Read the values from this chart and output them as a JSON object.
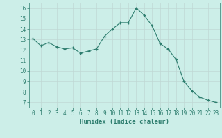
{
  "x": [
    0,
    1,
    2,
    3,
    4,
    5,
    6,
    7,
    8,
    9,
    10,
    11,
    12,
    13,
    14,
    15,
    16,
    17,
    18,
    19,
    20,
    21,
    22,
    23
  ],
  "y": [
    13.1,
    12.4,
    12.7,
    12.3,
    12.1,
    12.2,
    11.7,
    11.9,
    12.1,
    13.3,
    14.0,
    14.6,
    14.6,
    16.0,
    15.3,
    14.3,
    12.6,
    12.1,
    11.1,
    9.0,
    8.1,
    7.5,
    7.2,
    7.0
  ],
  "xlabel": "Humidex (Indice chaleur)",
  "ylim": [
    6.5,
    16.5
  ],
  "xlim": [
    -0.5,
    23.5
  ],
  "yticks": [
    7,
    8,
    9,
    10,
    11,
    12,
    13,
    14,
    15,
    16
  ],
  "xticks": [
    0,
    1,
    2,
    3,
    4,
    5,
    6,
    7,
    8,
    9,
    10,
    11,
    12,
    13,
    14,
    15,
    16,
    17,
    18,
    19,
    20,
    21,
    22,
    23
  ],
  "line_color": "#2d7d6e",
  "marker": "+",
  "bg_color": "#cceee8",
  "grid_color": "#c0d8d4",
  "xlabel_color": "#2d7d6e",
  "tick_color": "#2d7d6e",
  "font_family": "monospace"
}
